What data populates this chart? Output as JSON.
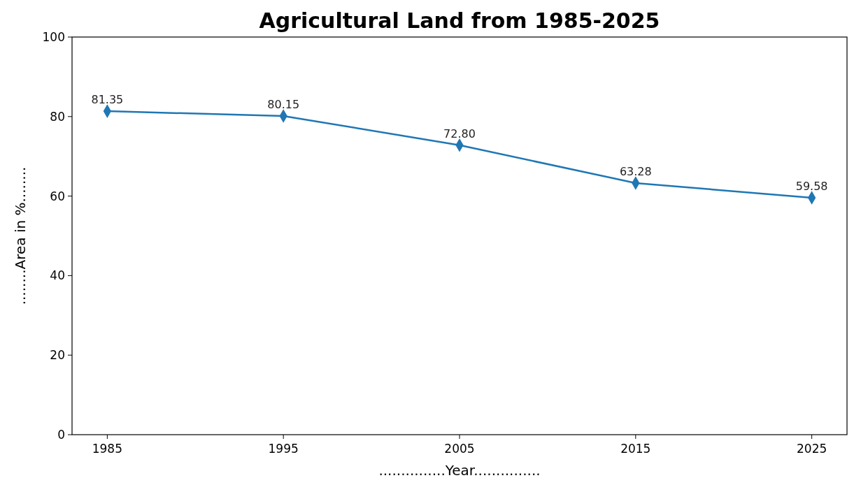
{
  "chart_data": {
    "type": "line",
    "title": "Agricultural Land from 1985-2025",
    "xlabel": "...............Year...............",
    "ylabel": "........Area in %........",
    "x": [
      1985,
      1995,
      2005,
      2015,
      2025
    ],
    "series": [
      {
        "color": "#1f77b4",
        "values": [
          81.35,
          80.15,
          72.8,
          63.28,
          59.58
        ],
        "value_labels": [
          "81.35",
          "80.15",
          "72.80",
          "63.28",
          "59.58"
        ]
      }
    ],
    "xlim": [
      1983,
      2027
    ],
    "xticks": [
      1985,
      1995,
      2005,
      2015,
      2025
    ],
    "ylim": [
      0,
      100
    ],
    "yticks": [
      0,
      20,
      40,
      60,
      80,
      100
    ],
    "marker": "diamond",
    "line_style": "solid"
  }
}
